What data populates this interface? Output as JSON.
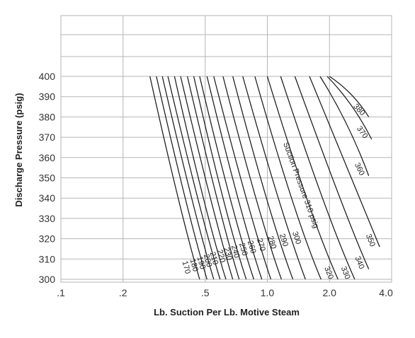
{
  "chart_data": {
    "type": "line",
    "xlabel": "Lb. Suction Per Lb. Motive Steam",
    "ylabel": "Discharge Pressure (psig)",
    "x_scale": "log",
    "xlim": [
      0.1,
      4.0
    ],
    "ylim": [
      300,
      400
    ],
    "x_ticks": [
      {
        "value": 0.1,
        "label": ".1"
      },
      {
        "value": 0.2,
        "label": ".2"
      },
      {
        "value": 0.5,
        "label": ".5"
      },
      {
        "value": 1.0,
        "label": "1.0"
      },
      {
        "value": 2.0,
        "label": "2.0"
      },
      {
        "value": 4.0,
        "label": "4.0"
      }
    ],
    "y_ticks": [
      300,
      310,
      320,
      330,
      340,
      350,
      360,
      370,
      380,
      390,
      400
    ],
    "series_label_prefix": "Suction Pressure",
    "series_label_unit": "psig",
    "series": [
      {
        "name": "170",
        "points": [
          [
            0.27,
            400
          ],
          [
            0.37,
            340
          ],
          [
            0.47,
            300
          ]
        ]
      },
      {
        "name": "180",
        "points": [
          [
            0.29,
            400
          ],
          [
            0.4,
            340
          ],
          [
            0.51,
            300
          ]
        ]
      },
      {
        "name": "190",
        "points": [
          [
            0.31,
            400
          ],
          [
            0.43,
            340
          ],
          [
            0.55,
            300
          ]
        ]
      },
      {
        "name": "200",
        "points": [
          [
            0.33,
            400
          ],
          [
            0.46,
            340
          ],
          [
            0.59,
            300
          ]
        ]
      },
      {
        "name": "210",
        "points": [
          [
            0.355,
            400
          ],
          [
            0.49,
            340
          ],
          [
            0.63,
            300
          ]
        ]
      },
      {
        "name": "220",
        "points": [
          [
            0.38,
            400
          ],
          [
            0.53,
            340
          ],
          [
            0.68,
            300
          ]
        ]
      },
      {
        "name": "230",
        "points": [
          [
            0.41,
            400
          ],
          [
            0.57,
            340
          ],
          [
            0.73,
            300
          ]
        ]
      },
      {
        "name": "240",
        "points": [
          [
            0.44,
            400
          ],
          [
            0.61,
            340
          ],
          [
            0.79,
            300
          ]
        ]
      },
      {
        "name": "250",
        "points": [
          [
            0.47,
            400
          ],
          [
            0.66,
            340
          ],
          [
            0.86,
            300
          ]
        ]
      },
      {
        "name": "260",
        "points": [
          [
            0.51,
            400
          ],
          [
            0.72,
            340
          ],
          [
            0.94,
            300
          ]
        ]
      },
      {
        "name": "270",
        "points": [
          [
            0.55,
            400
          ],
          [
            0.79,
            340
          ],
          [
            1.04,
            300
          ]
        ]
      },
      {
        "name": "280",
        "points": [
          [
            0.61,
            400
          ],
          [
            0.88,
            340
          ],
          [
            1.17,
            300
          ]
        ]
      },
      {
        "name": "290",
        "points": [
          [
            0.68,
            400
          ],
          [
            0.99,
            340
          ],
          [
            1.33,
            300
          ]
        ]
      },
      {
        "name": "300",
        "points": [
          [
            0.76,
            400
          ],
          [
            1.13,
            340
          ],
          [
            1.53,
            300
          ]
        ]
      },
      {
        "name": "310",
        "points": [
          [
            0.87,
            400
          ],
          [
            1.31,
            340
          ],
          [
            1.82,
            300
          ]
        ]
      },
      {
        "name": "320",
        "points": [
          [
            1.0,
            400
          ],
          [
            1.55,
            340
          ],
          [
            2.2,
            300
          ]
        ]
      },
      {
        "name": "330",
        "points": [
          [
            1.16,
            400
          ],
          [
            1.85,
            340
          ],
          [
            2.65,
            300
          ]
        ]
      },
      {
        "name": "340",
        "points": [
          [
            1.36,
            400
          ],
          [
            2.25,
            340
          ],
          [
            3.1,
            305
          ]
        ]
      },
      {
        "name": "350",
        "points": [
          [
            1.6,
            400
          ],
          [
            2.8,
            340
          ],
          [
            3.5,
            316
          ]
        ]
      },
      {
        "name": "360",
        "points": [
          [
            1.8,
            400
          ],
          [
            3.1,
            351
          ]
        ]
      },
      {
        "name": "370",
        "points": [
          [
            1.95,
            400
          ],
          [
            3.2,
            369
          ]
        ]
      },
      {
        "name": "380",
        "points": [
          [
            2.0,
            400
          ],
          [
            3.1,
            380
          ]
        ]
      }
    ]
  }
}
